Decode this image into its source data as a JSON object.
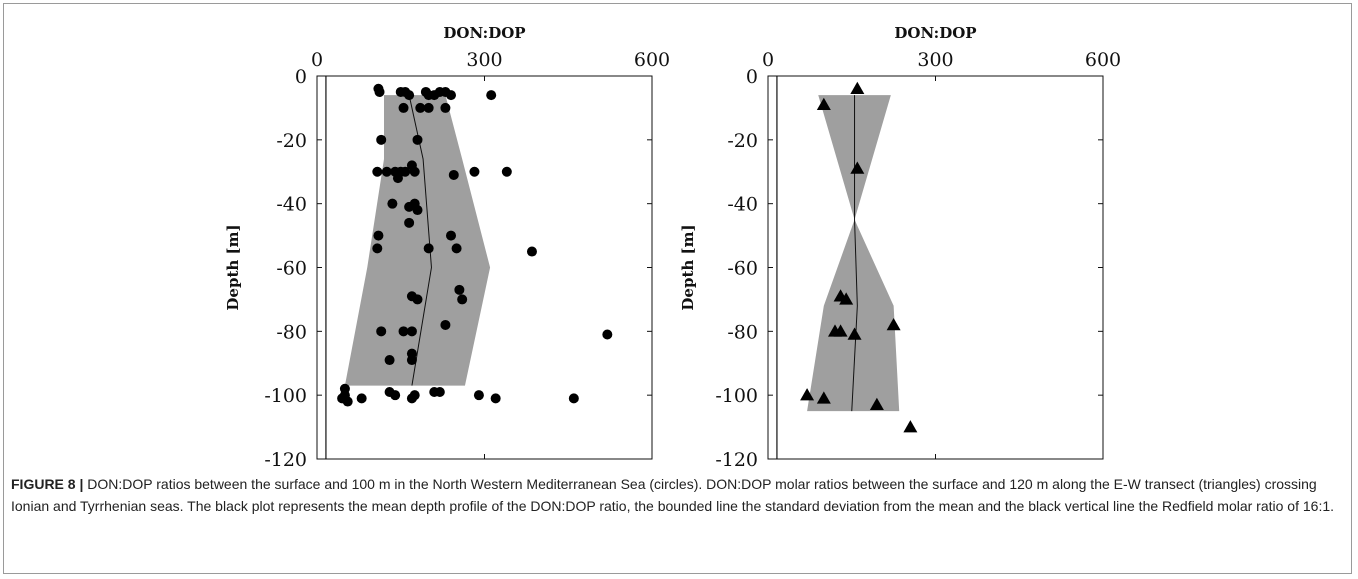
{
  "caption": {
    "label": "FIGURE 8 |",
    "text": "DON:DOP ratios between the surface and 100 m in the North Western Mediterranean Sea (circles). DON:DOP molar ratios between the surface and 120 m along the E-W transect (triangles) crossing Ionian and Tyrrhenian seas. The black plot represents the mean depth profile of the DON:DOP ratio, the bounded line the standard deviation from the mean and the black vertical line the Redfield molar ratio of 16:1."
  },
  "chart_data": [
    {
      "type": "scatter",
      "marker": "circle",
      "title": "",
      "xlabel": "DON:DOP",
      "ylabel": "Depth [m]",
      "xlim": [
        0,
        600
      ],
      "ylim": [
        -120,
        0
      ],
      "xticks": [
        "0",
        "300",
        "600"
      ],
      "yticks": [
        "0",
        "-20",
        "-40",
        "-60",
        "-80",
        "-100",
        "-120"
      ],
      "redfield_ratio": 16,
      "points": [
        [
          110,
          -4
        ],
        [
          112,
          -5
        ],
        [
          150,
          -5
        ],
        [
          158,
          -5
        ],
        [
          165,
          -6
        ],
        [
          195,
          -5
        ],
        [
          200,
          -6
        ],
        [
          210,
          -6
        ],
        [
          220,
          -5
        ],
        [
          230,
          -5
        ],
        [
          240,
          -6
        ],
        [
          312,
          -6
        ],
        [
          155,
          -10
        ],
        [
          185,
          -10
        ],
        [
          200,
          -10
        ],
        [
          230,
          -10
        ],
        [
          180,
          -20
        ],
        [
          115,
          -20
        ],
        [
          170,
          -28
        ],
        [
          108,
          -30
        ],
        [
          125,
          -30
        ],
        [
          140,
          -30
        ],
        [
          150,
          -30
        ],
        [
          158,
          -30
        ],
        [
          175,
          -30
        ],
        [
          145,
          -32
        ],
        [
          245,
          -31
        ],
        [
          282,
          -30
        ],
        [
          340,
          -30
        ],
        [
          175,
          -40
        ],
        [
          135,
          -40
        ],
        [
          165,
          -41
        ],
        [
          180,
          -42
        ],
        [
          165,
          -46
        ],
        [
          110,
          -50
        ],
        [
          240,
          -50
        ],
        [
          108,
          -54
        ],
        [
          200,
          -54
        ],
        [
          250,
          -54
        ],
        [
          385,
          -55
        ],
        [
          255,
          -67
        ],
        [
          260,
          -70
        ],
        [
          170,
          -69
        ],
        [
          180,
          -70
        ],
        [
          230,
          -78
        ],
        [
          115,
          -80
        ],
        [
          155,
          -80
        ],
        [
          170,
          -80
        ],
        [
          170,
          -87
        ],
        [
          170,
          -89
        ],
        [
          130,
          -89
        ],
        [
          50,
          -98
        ],
        [
          50,
          -100
        ],
        [
          130,
          -99
        ],
        [
          140,
          -100
        ],
        [
          175,
          -100
        ],
        [
          210,
          -99
        ],
        [
          220,
          -99
        ],
        [
          290,
          -100
        ],
        [
          320,
          -101
        ],
        [
          460,
          -101
        ],
        [
          170,
          -101
        ],
        [
          45,
          -101
        ],
        [
          55,
          -102
        ],
        [
          80,
          -101
        ],
        [
          520,
          -81
        ]
      ],
      "mean_profile": [
        [
          165,
          -6
        ],
        [
          190,
          -26
        ],
        [
          205,
          -60
        ],
        [
          170,
          -97
        ]
      ],
      "std_band": [
        [
          120,
          230,
          -6
        ],
        [
          120,
          260,
          -26
        ],
        [
          90,
          310,
          -60
        ],
        [
          50,
          265,
          -97
        ]
      ]
    },
    {
      "type": "scatter",
      "marker": "triangle",
      "title": "",
      "xlabel": "DON:DOP",
      "ylabel": "Depth [m]",
      "xlim": [
        0,
        600
      ],
      "ylim": [
        -120,
        0
      ],
      "xticks": [
        "0",
        "300",
        "600"
      ],
      "yticks": [
        "0",
        "-20",
        "-40",
        "-60",
        "-80",
        "-100",
        "-120"
      ],
      "redfield_ratio": 16,
      "points": [
        [
          160,
          -4
        ],
        [
          100,
          -9
        ],
        [
          160,
          -29
        ],
        [
          130,
          -69
        ],
        [
          140,
          -70
        ],
        [
          120,
          -80
        ],
        [
          130,
          -80
        ],
        [
          155,
          -81
        ],
        [
          225,
          -78
        ],
        [
          70,
          -100
        ],
        [
          100,
          -101
        ],
        [
          195,
          -103
        ],
        [
          255,
          -110
        ]
      ],
      "mean_profile": [
        [
          155,
          -6
        ],
        [
          155,
          -45
        ],
        [
          160,
          -72
        ],
        [
          150,
          -105
        ]
      ],
      "std_band": [
        [
          90,
          220,
          -6
        ],
        [
          155,
          155,
          -45
        ],
        [
          100,
          225,
          -72
        ],
        [
          70,
          235,
          -105
        ]
      ]
    }
  ]
}
